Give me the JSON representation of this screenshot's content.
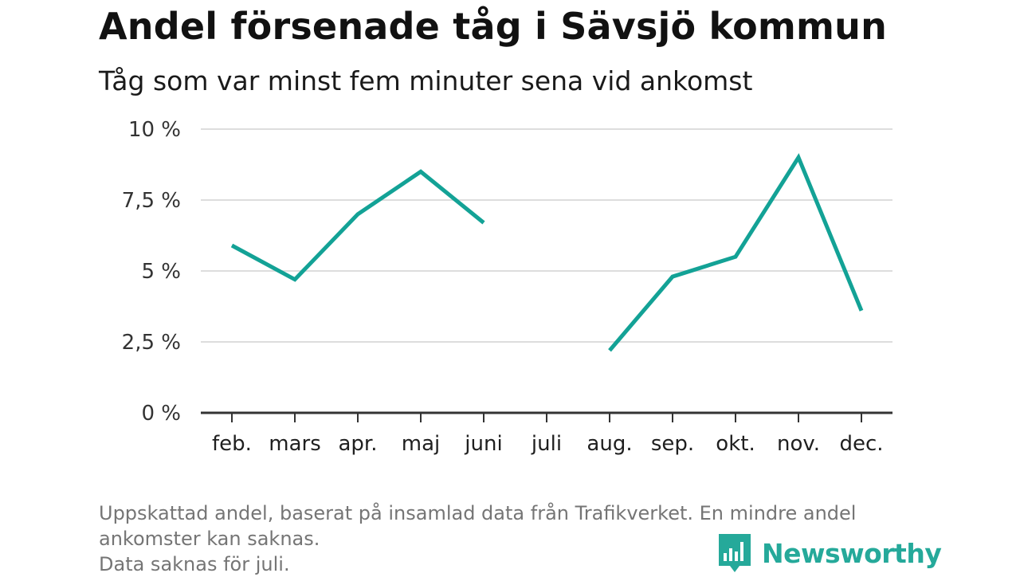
{
  "header": {
    "title": "Andel försenade tåg i Sävsjö kommun",
    "subtitle": "Tåg som var minst fem minuter sena vid ankomst"
  },
  "chart_data": {
    "type": "line",
    "title": "Andel försenade tåg i Sävsjö kommun",
    "subtitle": "Tåg som var minst fem minuter sena vid ankomst",
    "xlabel": "",
    "ylabel": "",
    "categories": [
      "feb.",
      "mars",
      "apr.",
      "maj",
      "juni",
      "juli",
      "aug.",
      "sep.",
      "okt.",
      "nov.",
      "dec."
    ],
    "series": [
      {
        "values": [
          5.9,
          4.7,
          7.0,
          8.5,
          6.7,
          null,
          2.2,
          4.8,
          5.5,
          9.0,
          3.6
        ]
      }
    ],
    "ylim": [
      0,
      10
    ],
    "yticks": [
      0,
      2.5,
      5,
      7.5,
      10
    ],
    "ytick_labels": [
      "0 %",
      "2,5 %",
      "5 %",
      "7,5 %",
      "10 %"
    ],
    "grid": true,
    "line_color": "#13a296"
  },
  "footnote": {
    "line1": "Uppskattad andel, baserat på insamlad data från Trafikverket. En mindre andel",
    "line2": "ankomster kan saknas.",
    "line3": "Data saknas för juli."
  },
  "brand": {
    "name": "Newsworthy",
    "icon": "newsworthy-logo-icon",
    "color": "#25a99a"
  }
}
